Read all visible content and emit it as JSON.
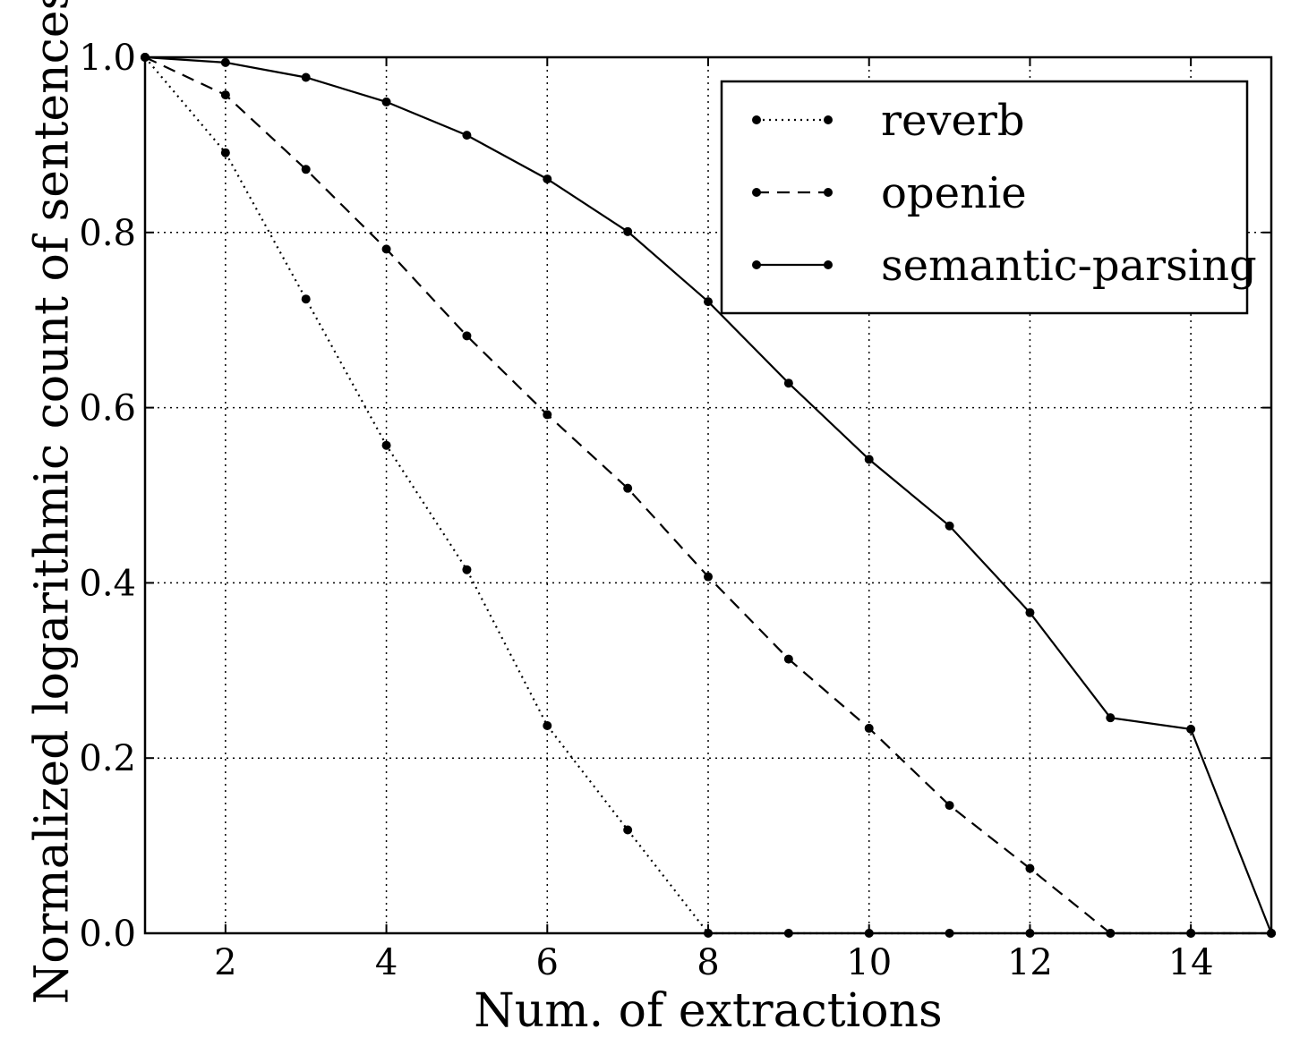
{
  "chart_data": {
    "type": "line",
    "xlabel": "Num. of extractions",
    "ylabel": "Normalized logarithmic count of sentences",
    "xlim": [
      1,
      15
    ],
    "ylim": [
      0.0,
      1.0
    ],
    "xticks": [
      2,
      4,
      6,
      8,
      10,
      12,
      14
    ],
    "xtick_labels": [
      "2",
      "4",
      "6",
      "8",
      "10",
      "12",
      "14"
    ],
    "yticks": [
      0.0,
      0.2,
      0.4,
      0.6,
      0.8,
      1.0
    ],
    "ytick_labels": [
      "0.0",
      "0.2",
      "0.4",
      "0.6",
      "0.8",
      "1.0"
    ],
    "grid": true,
    "legend_position": "top-right",
    "series": [
      {
        "name": "reverb",
        "line_style": "dotted",
        "x": [
          1,
          2,
          3,
          4,
          5,
          6,
          7,
          8,
          9,
          10,
          11,
          12,
          13,
          14,
          15
        ],
        "y": [
          1.0,
          0.891,
          0.724,
          0.557,
          0.415,
          0.237,
          0.118,
          0.0,
          0.0,
          0.0,
          0.0,
          0.0,
          0.0,
          0.0,
          0.0
        ]
      },
      {
        "name": "openie",
        "line_style": "dashed",
        "x": [
          1,
          2,
          3,
          4,
          5,
          6,
          7,
          8,
          9,
          10,
          11,
          12,
          13,
          14,
          15
        ],
        "y": [
          1.0,
          0.957,
          0.872,
          0.781,
          0.682,
          0.592,
          0.508,
          0.407,
          0.313,
          0.234,
          0.146,
          0.074,
          0.0,
          0.0,
          0.0
        ]
      },
      {
        "name": "semantic-parsing",
        "line_style": "solid",
        "x": [
          1,
          2,
          3,
          4,
          5,
          6,
          7,
          8,
          9,
          10,
          11,
          12,
          13,
          14,
          15
        ],
        "y": [
          1.0,
          0.994,
          0.977,
          0.949,
          0.911,
          0.861,
          0.801,
          0.721,
          0.628,
          0.541,
          0.465,
          0.366,
          0.246,
          0.233,
          0.0
        ]
      }
    ]
  }
}
